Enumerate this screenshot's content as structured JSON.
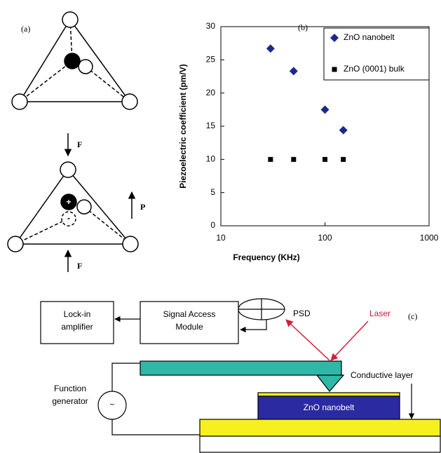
{
  "chart_data": {
    "type": "scatter",
    "annotation": "(b)",
    "xlabel": "Frequency  (KHz)",
    "ylabel": "Piezoelectric coefficient (pm/V)",
    "x": [
      30,
      50,
      100,
      150
    ],
    "series": [
      {
        "name": "ZnO nanobelt",
        "color": "#1a2a8c",
        "marker": "diamond",
        "values": [
          26.7,
          23.3,
          17.5,
          14.4
        ]
      },
      {
        "name": "ZnO (0001) bulk",
        "color": "#000000",
        "marker": "square",
        "values": [
          10,
          10,
          10,
          10
        ]
      }
    ],
    "xlim": [
      10,
      1000
    ],
    "xticks": [
      10,
      100,
      1000
    ],
    "xscale": "log",
    "ylim": [
      0,
      30
    ],
    "yticks": [
      0,
      5,
      10,
      15,
      20,
      25,
      30
    ],
    "grid": false,
    "legend": "upper right"
  },
  "diagram_a": {
    "label": "(a)",
    "force_top": "F",
    "force_bottom": "F",
    "polarization": "P",
    "plus": "+",
    "minus": "-"
  },
  "diagram_c": {
    "label": "(c)",
    "lockin": [
      "Lock-in",
      "amplifier"
    ],
    "sam": [
      "Signal Access",
      "Module"
    ],
    "psd": "PSD",
    "laser": "Laser",
    "function_generator": [
      "Function",
      "generator"
    ],
    "generator_symbol": "~",
    "conductive_layer": "Conductive layer",
    "nanobelt": "ZnO nanobelt"
  }
}
